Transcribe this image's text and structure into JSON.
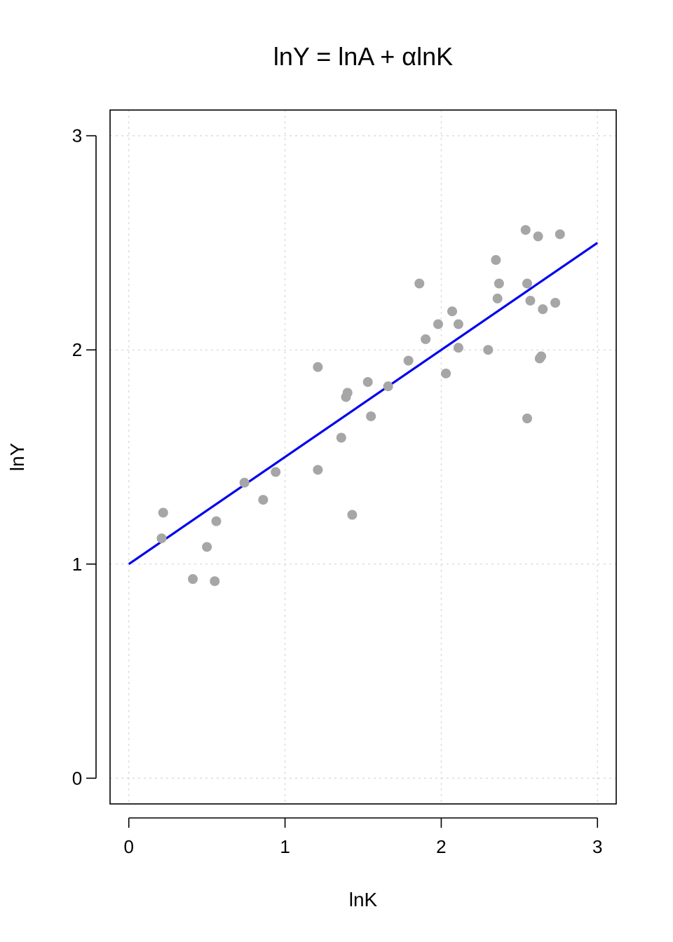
{
  "chart_data": {
    "type": "scatter",
    "title": "lnY = lnA + αlnK",
    "xlabel": "lnK",
    "ylabel": "lnY",
    "xlim": [
      -0.12,
      3.12
    ],
    "ylim": [
      -0.12,
      3.12
    ],
    "xticks": [
      0,
      1,
      2,
      3
    ],
    "yticks": [
      0,
      1,
      2,
      3
    ],
    "grid": true,
    "colors": {
      "points": "#a6a6a6",
      "line": "#0000ee",
      "grid": "#d9d9d9",
      "axis": "#000000"
    },
    "series": [
      {
        "kind": "points",
        "x": [
          0.22,
          0.21,
          0.41,
          0.5,
          0.55,
          0.56,
          0.74,
          0.86,
          0.94,
          1.21,
          1.21,
          1.36,
          1.39,
          1.4,
          1.43,
          1.53,
          1.55,
          1.66,
          1.79,
          1.86,
          1.9,
          1.98,
          2.03,
          2.07,
          2.11,
          2.11,
          2.3,
          2.35,
          2.36,
          2.37,
          2.54,
          2.55,
          2.55,
          2.57,
          2.62,
          2.63,
          2.64,
          2.65,
          2.73,
          2.76
        ],
        "y": [
          1.24,
          1.12,
          0.93,
          1.08,
          0.92,
          1.2,
          1.38,
          1.3,
          1.43,
          1.92,
          1.44,
          1.59,
          1.78,
          1.8,
          1.23,
          1.85,
          1.69,
          1.83,
          1.95,
          2.31,
          2.05,
          2.12,
          1.89,
          2.18,
          2.12,
          2.01,
          2.0,
          2.42,
          2.24,
          2.31,
          2.56,
          2.31,
          1.68,
          2.23,
          2.53,
          1.96,
          1.97,
          2.19,
          2.22,
          2.54
        ]
      },
      {
        "kind": "line",
        "x": [
          0,
          3
        ],
        "y": [
          1.0,
          2.5
        ]
      }
    ]
  }
}
